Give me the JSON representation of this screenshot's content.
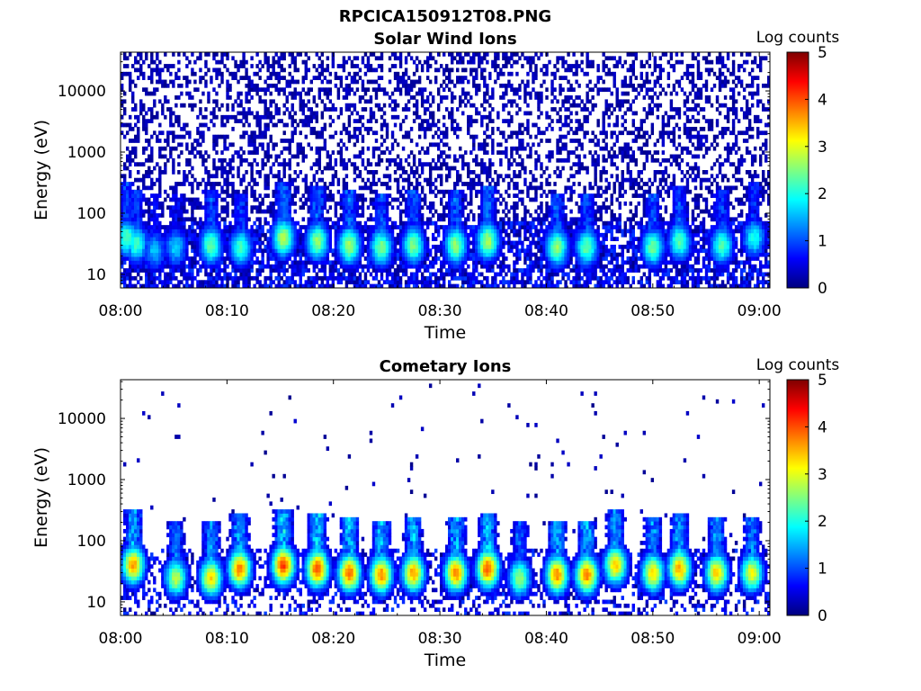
{
  "figure": {
    "title": "RPCICA150912T08.PNG"
  },
  "colormap": {
    "stops": [
      "#00007f",
      "#0000ff",
      "#0080ff",
      "#00ffff",
      "#80ff80",
      "#ffff00",
      "#ff8000",
      "#ff0000",
      "#7f0000"
    ]
  },
  "chart_data": [
    {
      "type": "heatmap",
      "title": "Solar Wind Ions",
      "xlabel": "Time",
      "ylabel": "Energy (eV)",
      "x_ticks": [
        "08:00",
        "08:10",
        "08:20",
        "08:30",
        "08:40",
        "08:50",
        "09:00"
      ],
      "x_tick_minutes": [
        0,
        10,
        20,
        30,
        40,
        50,
        60
      ],
      "xlim_minutes": [
        0,
        61
      ],
      "y_scale": "log",
      "y_ticks": [
        "10",
        "100",
        "1000",
        "10000"
      ],
      "y_tick_values": [
        10,
        100,
        1000,
        10000
      ],
      "ylim": [
        6,
        43000
      ],
      "colorbar": {
        "label": "Log counts",
        "ticks": [
          "0",
          "1",
          "2",
          "3",
          "4",
          "5"
        ],
        "range": [
          0,
          5
        ]
      },
      "noise": {
        "density_high": 0.42,
        "density_low": 0.7,
        "energy_floor": 6
      },
      "bursts": [
        {
          "t": 0.6,
          "e": 40,
          "level": 2.3
        },
        {
          "t": 1.5,
          "e": 32,
          "level": 2.2
        },
        {
          "t": 3.2,
          "e": 25,
          "level": 1.6
        },
        {
          "t": 5.2,
          "e": 28,
          "level": 1.7
        },
        {
          "t": 8.5,
          "e": 30,
          "level": 2.4
        },
        {
          "t": 11.3,
          "e": 28,
          "level": 2.2
        },
        {
          "t": 15.3,
          "e": 40,
          "level": 2.8
        },
        {
          "t": 18.5,
          "e": 35,
          "level": 2.6
        },
        {
          "t": 21.5,
          "e": 30,
          "level": 2.7
        },
        {
          "t": 24.5,
          "e": 28,
          "level": 2.5
        },
        {
          "t": 27.5,
          "e": 30,
          "level": 2.5
        },
        {
          "t": 31.5,
          "e": 30,
          "level": 2.6
        },
        {
          "t": 34.5,
          "e": 35,
          "level": 2.7
        },
        {
          "t": 41,
          "e": 28,
          "level": 2.6
        },
        {
          "t": 43.8,
          "e": 28,
          "level": 2.4
        },
        {
          "t": 50,
          "e": 28,
          "level": 2.4
        },
        {
          "t": 52.5,
          "e": 35,
          "level": 2.3
        },
        {
          "t": 56.5,
          "e": 30,
          "level": 2.3
        },
        {
          "t": 59.5,
          "e": 40,
          "level": 2.0
        }
      ]
    },
    {
      "type": "heatmap",
      "title": "Cometary Ions",
      "xlabel": "Time",
      "ylabel": "Energy (eV)",
      "x_ticks": [
        "08:00",
        "08:10",
        "08:20",
        "08:30",
        "08:40",
        "08:50",
        "09:00"
      ],
      "x_tick_minutes": [
        0,
        10,
        20,
        30,
        40,
        50,
        60
      ],
      "xlim_minutes": [
        0,
        61
      ],
      "y_scale": "log",
      "y_ticks": [
        "10",
        "100",
        "1000",
        "10000"
      ],
      "y_tick_values": [
        10,
        100,
        1000,
        10000
      ],
      "ylim": [
        6,
        43000
      ],
      "colorbar": {
        "label": "Log counts",
        "ticks": [
          "0",
          "1",
          "2",
          "3",
          "4",
          "5"
        ],
        "range": [
          0,
          5
        ]
      },
      "noise": {
        "density_high": 0.012,
        "density_low": 0.3,
        "energy_floor": 6
      },
      "bursts": [
        {
          "t": 1.2,
          "e": 40,
          "level": 3.6
        },
        {
          "t": 5.2,
          "e": 25,
          "level": 2.8
        },
        {
          "t": 8.5,
          "e": 25,
          "level": 3.3
        },
        {
          "t": 11.2,
          "e": 35,
          "level": 3.8
        },
        {
          "t": 15.3,
          "e": 40,
          "level": 4.1
        },
        {
          "t": 18.5,
          "e": 35,
          "level": 4.0
        },
        {
          "t": 21.5,
          "e": 30,
          "level": 3.9
        },
        {
          "t": 24.5,
          "e": 28,
          "level": 3.7
        },
        {
          "t": 27.5,
          "e": 30,
          "level": 3.6
        },
        {
          "t": 31.5,
          "e": 30,
          "level": 3.7
        },
        {
          "t": 34.5,
          "e": 35,
          "level": 4.0
        },
        {
          "t": 37.5,
          "e": 25,
          "level": 2.6
        },
        {
          "t": 41,
          "e": 28,
          "level": 3.7
        },
        {
          "t": 43.8,
          "e": 28,
          "level": 3.8
        },
        {
          "t": 46.5,
          "e": 40,
          "level": 3.4
        },
        {
          "t": 50,
          "e": 30,
          "level": 3.3
        },
        {
          "t": 52.5,
          "e": 35,
          "level": 3.6
        },
        {
          "t": 56,
          "e": 30,
          "level": 3.4
        },
        {
          "t": 59.3,
          "e": 30,
          "level": 3.1
        }
      ]
    }
  ]
}
